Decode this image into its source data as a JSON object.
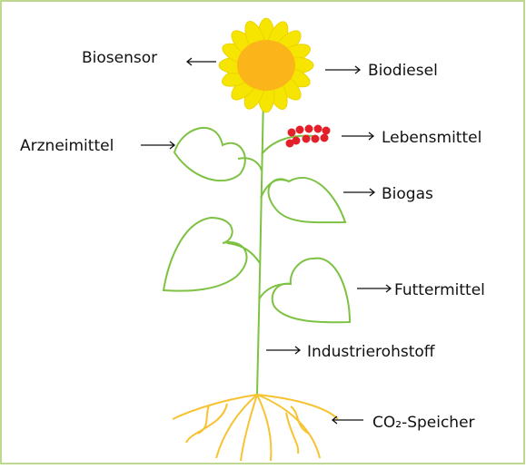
{
  "labels": {
    "biosensor": "Biosensor",
    "biodiesel": "Biodiesel",
    "arzneimittel": "Arzneimittel",
    "lebensmittel": "Lebensmittel",
    "biogas": "Biogas",
    "futtermittel": "Futtermittel",
    "industrierohstoff": "Industrierohstoff",
    "co2_speicher": "CO₂-Speicher"
  }
}
